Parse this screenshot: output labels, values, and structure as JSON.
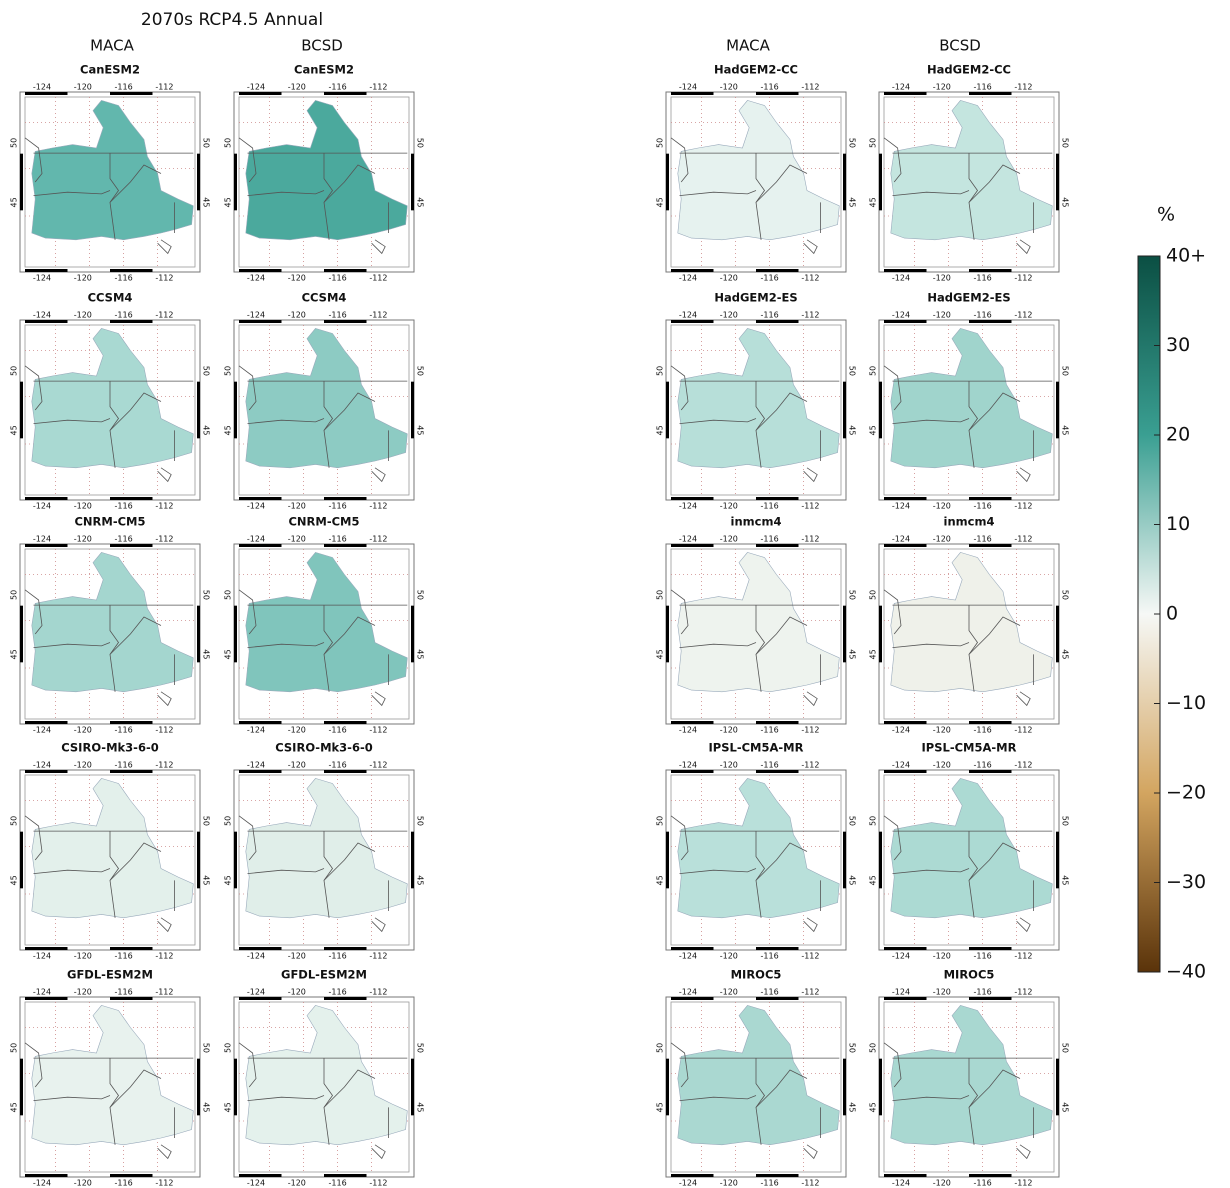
{
  "title": "2070s RCP4.5 Annual",
  "column_headers": [
    "MACA",
    "BCSD",
    "MACA",
    "BCSD"
  ],
  "map_labels": {
    "lon": [
      "-124",
      "-120",
      "-116",
      "-112"
    ],
    "lat": [
      "50",
      "45"
    ]
  },
  "panels": [
    {
      "label": "CanESM2",
      "fill": "#62b7ad"
    },
    {
      "label": "CanESM2",
      "fill": "#4ba99d"
    },
    {
      "label": "CCSM4",
      "fill": "#a9d9d2"
    },
    {
      "label": "CCSM4",
      "fill": "#8dcbc3"
    },
    {
      "label": "CNRM-CM5",
      "fill": "#a4d6cf"
    },
    {
      "label": "CNRM-CM5",
      "fill": "#80c5bc"
    },
    {
      "label": "CSIRO-Mk3-6-0",
      "fill": "#e3f0eb"
    },
    {
      "label": "CSIRO-Mk3-6-0",
      "fill": "#e0eee9"
    },
    {
      "label": "GFDL-ESM2M",
      "fill": "#e8f2ee"
    },
    {
      "label": "GFDL-ESM2M",
      "fill": "#e4f1ec"
    },
    {
      "label": "HadGEM2-CC",
      "fill": "#e6f2ef"
    },
    {
      "label": "HadGEM2-CC",
      "fill": "#c4e5df"
    },
    {
      "label": "HadGEM2-ES",
      "fill": "#b7dfd9"
    },
    {
      "label": "HadGEM2-ES",
      "fill": "#a0d4cc"
    },
    {
      "label": "inmcm4",
      "fill": "#eef3ee"
    },
    {
      "label": "inmcm4",
      "fill": "#eff1ea"
    },
    {
      "label": "IPSL-CM5A-MR",
      "fill": "#b9e0da"
    },
    {
      "label": "IPSL-CM5A-MR",
      "fill": "#acdad3"
    },
    {
      "label": "MIROC5",
      "fill": "#aad8d1"
    },
    {
      "label": "MIROC5",
      "fill": "#a9d8d1"
    }
  ],
  "colorbar": {
    "title": "%",
    "lim": [
      -40,
      40
    ],
    "ticks": [
      {
        "value": 40,
        "label": "40+"
      },
      30,
      20,
      10,
      0,
      {
        "value": -10,
        "label": "−10"
      },
      {
        "value": -20,
        "label": "−20"
      },
      {
        "value": -30,
        "label": "−30"
      },
      {
        "value": -40,
        "label": "−40"
      }
    ]
  }
}
